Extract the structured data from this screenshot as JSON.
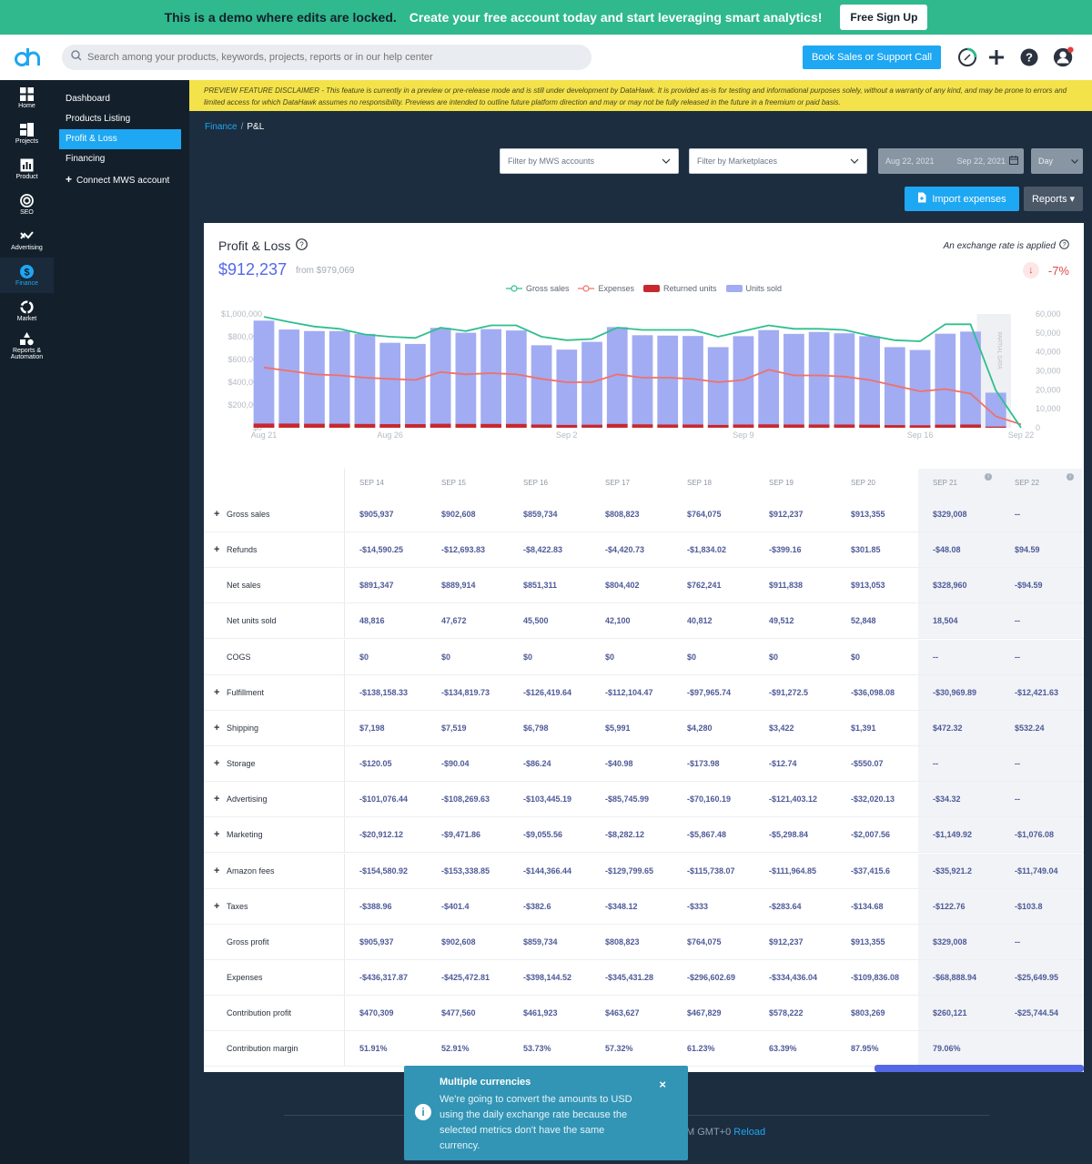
{
  "banner": {
    "text": "This is a demo where edits are locked.",
    "cta": "Create your free account today and start leveraging smart analytics!",
    "signup_label": "Free Sign Up"
  },
  "topbar": {
    "search_placeholder": "Search among your products, keywords, projects, reports or in our help center",
    "book_label": "Book Sales or Support Call"
  },
  "rail": [
    {
      "label": "Home",
      "icon": "home-icon"
    },
    {
      "label": "Projects",
      "icon": "projects-icon"
    },
    {
      "label": "Product",
      "icon": "product-icon"
    },
    {
      "label": "SEO",
      "icon": "seo-icon"
    },
    {
      "label": "Advertising",
      "icon": "advertising-icon"
    },
    {
      "label": "Finance",
      "icon": "finance-icon",
      "active": true
    },
    {
      "label": "Market",
      "icon": "market-icon"
    },
    {
      "label": "Reports & Automation",
      "icon": "reports-automation-icon"
    }
  ],
  "subnav": [
    {
      "label": "Dashboard"
    },
    {
      "label": "Products Listing"
    },
    {
      "label": "Profit & Loss",
      "active": true
    },
    {
      "label": "Financing"
    },
    {
      "label": "Connect MWS account",
      "plus": true
    }
  ],
  "disclaimer": "PREVIEW FEATURE DISCLAIMER - This feature is currently in a preview or pre-release mode and is still under development by DataHawk. It is provided as-is for testing and informational purposes solely, without a warranty of any kind, and may be prone to errors and limited access for which DataHawk assumes no responsibility. Previews are intended to outline future platform direction and may or may not be fully released in the future in a freemium or paid basis.",
  "breadcrumb": {
    "root": "Finance",
    "sep": "/",
    "current": "P&L"
  },
  "filters": {
    "mws": "Filter by MWS accounts",
    "marketplaces": "Filter by Marketplaces",
    "date_from": "Aug 22, 2021",
    "date_to": "Sep 22, 2021",
    "granularity": "Day"
  },
  "actions": {
    "import_label": "Import expenses",
    "reports_label": "Reports"
  },
  "card": {
    "title": "Profit & Loss",
    "value": "$912,237",
    "from": "from $979,069",
    "exchange": "An exchange rate is applied",
    "change": "-7%"
  },
  "chart_data": {
    "type": "bar",
    "legend": [
      "Gross sales",
      "Expenses",
      "Returned units",
      "Units sold"
    ],
    "x_tick_labels": [
      "Aug 21",
      "Aug 26",
      "Sep 2",
      "Sep 9",
      "Sep 16",
      "Sep 22"
    ],
    "y_left_ticks": [
      "$1,000,000",
      "$800,000",
      "$600,000",
      "$400,000",
      "$200,000",
      "$0"
    ],
    "y_right_ticks": [
      "60,000",
      "50,000",
      "40,000",
      "30,000",
      "20,000",
      "10,000",
      "0"
    ],
    "y_left_range": [
      0,
      1000000
    ],
    "y_right_range": [
      0,
      60000
    ],
    "partial_label": "PARTIAL DATA",
    "units_sold": [
      56500,
      51800,
      51000,
      51000,
      49500,
      44800,
      44200,
      52700,
      50100,
      52000,
      51300,
      43500,
      41200,
      45300,
      53100,
      48800,
      48600,
      48400,
      42500,
      48300,
      51500,
      49500,
      50500,
      49800,
      48300,
      42500,
      41000,
      49600,
      50700,
      18500,
      0
    ],
    "returned_units": [
      2200,
      2200,
      2100,
      2100,
      2000,
      1900,
      1900,
      2100,
      2000,
      2000,
      2000,
      1700,
      1500,
      1600,
      2000,
      1800,
      1700,
      1700,
      1500,
      1700,
      1800,
      1700,
      1700,
      1700,
      1600,
      1400,
      1300,
      1600,
      1700,
      600,
      0
    ],
    "gross_sales": [
      975000,
      930000,
      890000,
      870000,
      820000,
      800000,
      790000,
      880000,
      850000,
      900000,
      900000,
      800000,
      770000,
      780000,
      880000,
      860000,
      860000,
      860000,
      800000,
      850000,
      900000,
      870000,
      870000,
      860000,
      810000,
      770000,
      760000,
      910000,
      910000,
      329000,
      0
    ],
    "expenses": [
      530000,
      500000,
      470000,
      460000,
      440000,
      430000,
      420000,
      490000,
      470000,
      480000,
      470000,
      430000,
      400000,
      400000,
      470000,
      440000,
      440000,
      430000,
      400000,
      420000,
      510000,
      460000,
      460000,
      450000,
      420000,
      370000,
      320000,
      340000,
      300000,
      100000,
      30000
    ]
  },
  "table": {
    "headers": [
      "SEP 14",
      "SEP 15",
      "SEP 16",
      "SEP 17",
      "SEP 18",
      "SEP 19",
      "SEP 20",
      "SEP 21",
      "SEP 22"
    ],
    "rows": [
      {
        "label": "Gross sales",
        "plus": true,
        "values": [
          "$905,937",
          "$902,608",
          "$859,734",
          "$808,823",
          "$764,075",
          "$912,237",
          "$913,355",
          "$329,008",
          "--"
        ]
      },
      {
        "label": "Refunds",
        "plus": true,
        "values": [
          "-$14,590.25",
          "-$12,693.83",
          "-$8,422.83",
          "-$4,420.73",
          "-$1,834.02",
          "-$399.16",
          "$301.85",
          "-$48.08",
          "$94.59"
        ]
      },
      {
        "label": "Net sales",
        "plus": false,
        "values": [
          "$891,347",
          "$889,914",
          "$851,311",
          "$804,402",
          "$762,241",
          "$911,838",
          "$913,053",
          "$328,960",
          "-$94.59"
        ]
      },
      {
        "label": "Net units sold",
        "plus": false,
        "values": [
          "48,816",
          "47,672",
          "45,500",
          "42,100",
          "40,812",
          "49,512",
          "52,848",
          "18,504",
          "--"
        ]
      },
      {
        "label": "COGS",
        "plus": false,
        "values": [
          "$0",
          "$0",
          "$0",
          "$0",
          "$0",
          "$0",
          "$0",
          "--",
          "--"
        ]
      },
      {
        "label": "Fulfillment",
        "plus": true,
        "values": [
          "-$138,158.33",
          "-$134,819.73",
          "-$126,419.64",
          "-$112,104.47",
          "-$97,965.74",
          "-$91,272.5",
          "-$36,098.08",
          "-$30,969.89",
          "-$12,421.63"
        ]
      },
      {
        "label": "Shipping",
        "plus": true,
        "values": [
          "$7,198",
          "$7,519",
          "$6,798",
          "$5,991",
          "$4,280",
          "$3,422",
          "$1,391",
          "$472.32",
          "$532.24"
        ]
      },
      {
        "label": "Storage",
        "plus": true,
        "values": [
          "-$120.05",
          "-$90.04",
          "-$86.24",
          "-$40.98",
          "-$173.98",
          "-$12.74",
          "-$550.07",
          "--",
          "--"
        ]
      },
      {
        "label": "Advertising",
        "plus": true,
        "values": [
          "-$101,076.44",
          "-$108,269.63",
          "-$103,445.19",
          "-$85,745.99",
          "-$70,160.19",
          "-$121,403.12",
          "-$32,020.13",
          "-$34.32",
          "--"
        ]
      },
      {
        "label": "Marketing",
        "plus": true,
        "values": [
          "-$20,912.12",
          "-$9,471.86",
          "-$9,055.56",
          "-$8,282.12",
          "-$5,867.48",
          "-$5,298.84",
          "-$2,007.56",
          "-$1,149.92",
          "-$1,076.08"
        ]
      },
      {
        "label": "Amazon fees",
        "plus": true,
        "values": [
          "-$154,580.92",
          "-$153,338.85",
          "-$144,366.44",
          "-$129,799.65",
          "-$115,738.07",
          "-$111,964.85",
          "-$37,415.6",
          "-$35,921.2",
          "-$11,749.04"
        ]
      },
      {
        "label": "Taxes",
        "plus": true,
        "values": [
          "-$388.96",
          "-$401.4",
          "-$382.6",
          "-$348.12",
          "-$333",
          "-$283.64",
          "-$134.68",
          "-$122.76",
          "-$103.8"
        ]
      },
      {
        "label": "Gross profit",
        "plus": false,
        "values": [
          "$905,937",
          "$902,608",
          "$859,734",
          "$808,823",
          "$764,075",
          "$912,237",
          "$913,355",
          "$329,008",
          "--"
        ]
      },
      {
        "label": "Expenses",
        "plus": false,
        "values": [
          "-$436,317.87",
          "-$425,472.81",
          "-$398,144.52",
          "-$345,431.28",
          "-$296,602.69",
          "-$334,436.04",
          "-$109,836.08",
          "-$68,888.94",
          "-$25,649.95"
        ]
      },
      {
        "label": "Contribution profit",
        "plus": false,
        "values": [
          "$470,309",
          "$477,560",
          "$461,923",
          "$463,627",
          "$467,829",
          "$578,222",
          "$803,269",
          "$260,121",
          "-$25,744.54"
        ]
      },
      {
        "label": "Contribution margin",
        "plus": false,
        "values": [
          "51.91%",
          "52.91%",
          "53.73%",
          "57.32%",
          "61.23%",
          "63.39%",
          "87.95%",
          "79.06%",
          ""
        ]
      }
    ]
  },
  "footer": {
    "text": "M GMT+0",
    "reload": "Reload"
  },
  "toast": {
    "title": "Multiple currencies",
    "body": "We're going to convert the amounts to USD using the daily exchange rate because the selected metrics don't have the same currency."
  },
  "colors": {
    "accent": "#1ea7f2",
    "banner": "#2fb98c",
    "gross_sales": "#2fbf8f",
    "expenses": "#f0706a",
    "returned_units": "#c8282e",
    "units_sold": "#a2acf2"
  }
}
